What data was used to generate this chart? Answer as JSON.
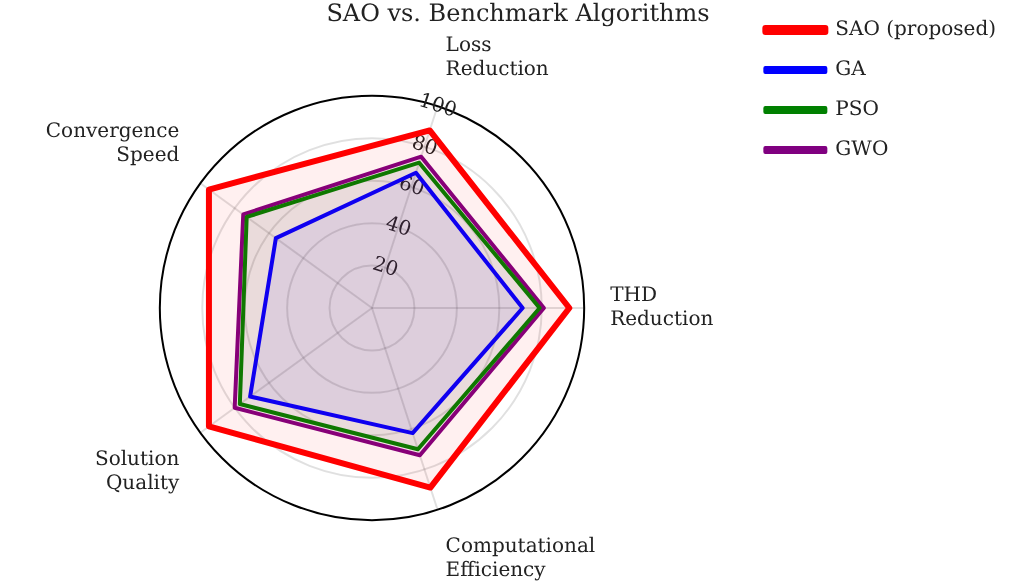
{
  "chart_data": {
    "type": "radar",
    "title": "SAO vs. Benchmark Algorithms",
    "categories": [
      "Loss Reduction",
      "THD Reduction",
      "Computational Efficiency",
      "Solution Quality",
      "Convergence Speed"
    ],
    "series": [
      {
        "name": "SAO (proposed)",
        "color": "#ff0000",
        "values": [
          88,
          93,
          89,
          95,
          95
        ]
      },
      {
        "name": "GA",
        "color": "#0000ff",
        "values": [
          67,
          71,
          62,
          71,
          56
        ]
      },
      {
        "name": "PSO",
        "color": "#008000",
        "values": [
          72,
          79,
          70,
          77,
          73
        ]
      },
      {
        "name": "GWO",
        "color": "#800080",
        "values": [
          75,
          81,
          73,
          80,
          75
        ]
      }
    ],
    "ylim": [
      0,
      100
    ],
    "yticks": [
      20,
      40,
      60,
      80,
      100
    ],
    "grid": true,
    "legend": "top right",
    "marker": "none"
  }
}
